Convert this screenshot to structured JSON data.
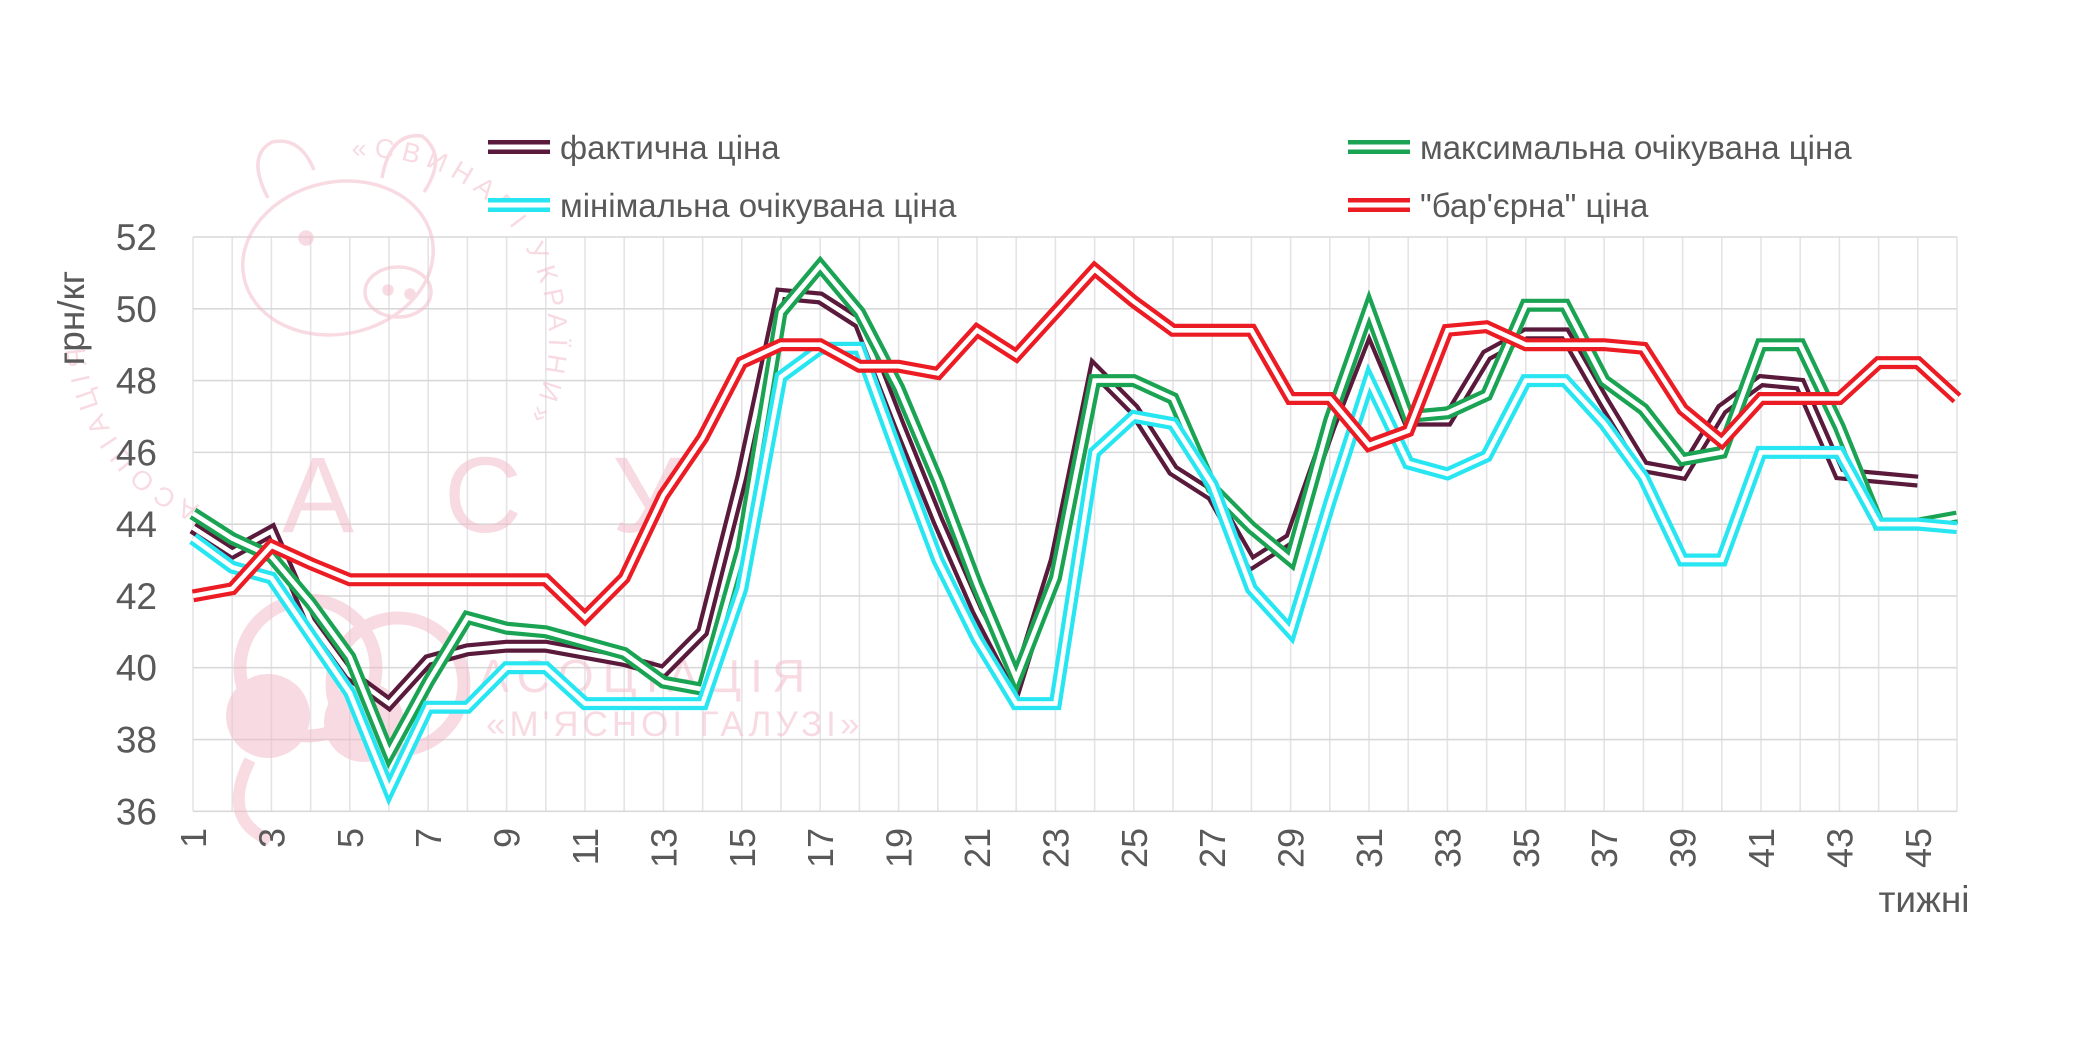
{
  "chart_data": {
    "type": "line",
    "xlabel": "тижні",
    "ylabel": "грн/кг",
    "ylim": [
      36,
      52
    ],
    "ytick_step": 2,
    "x_weeks": 46,
    "xticks": [
      1,
      3,
      5,
      7,
      9,
      11,
      13,
      15,
      17,
      19,
      21,
      23,
      25,
      27,
      29,
      31,
      33,
      35,
      37,
      39,
      41,
      43,
      45
    ],
    "grid": true,
    "legend_position": "top",
    "series": [
      {
        "name": "фактична ціна",
        "color": "#5a1a3c",
        "values": [
          43.9,
          43.2,
          43.8,
          41.3,
          39.8,
          39.0,
          40.2,
          40.5,
          40.6,
          40.6,
          40.4,
          40.2,
          39.9,
          41.0,
          45.3,
          50.4,
          50.3,
          49.6,
          46.8,
          44.1,
          41.6,
          39.5,
          43.0,
          48.3,
          47.2,
          45.5,
          44.8,
          42.9,
          43.6,
          46.7,
          49.5,
          46.9,
          46.9,
          48.7,
          49.3,
          49.3,
          47.4,
          45.6,
          45.4,
          47.2,
          48.0,
          47.9,
          45.4,
          45.3,
          45.2,
          null
        ]
      },
      {
        "name": "максимальна очікувана ціна",
        "color": "#1aa353",
        "values": [
          44.3,
          43.6,
          43.1,
          41.8,
          40.3,
          37.6,
          39.6,
          41.4,
          41.1,
          41.0,
          40.7,
          40.4,
          39.6,
          39.4,
          43.3,
          49.9,
          51.2,
          49.9,
          47.8,
          45.2,
          42.3,
          39.7,
          42.5,
          48.0,
          48.0,
          47.5,
          45.0,
          43.9,
          43.0,
          46.9,
          50.0,
          47.0,
          47.1,
          47.6,
          50.1,
          50.1,
          48.0,
          47.2,
          45.8,
          46.0,
          49.0,
          49.0,
          46.7,
          44.0,
          44.0,
          44.2
        ]
      },
      {
        "name": "мінімальна очікувана ціна",
        "color": "#27e6f2",
        "values": [
          43.6,
          42.8,
          42.5,
          40.9,
          39.3,
          36.6,
          38.9,
          38.9,
          40.0,
          40.0,
          39.0,
          39.0,
          39.0,
          39.0,
          42.2,
          48.1,
          48.9,
          48.9,
          45.9,
          43.0,
          40.8,
          39.0,
          39.0,
          46.0,
          47.0,
          46.8,
          45.1,
          42.2,
          41.0,
          44.6,
          48.0,
          45.7,
          45.4,
          45.9,
          48.0,
          48.0,
          46.8,
          45.3,
          43.0,
          43.0,
          46.0,
          46.0,
          46.0,
          44.0,
          44.0,
          43.9
        ]
      },
      {
        "name": "\"бар'єрна\" ціна",
        "color": "#ec1c24",
        "values": [
          42.0,
          42.2,
          43.4,
          42.9,
          42.45,
          42.45,
          42.45,
          42.45,
          42.45,
          42.45,
          41.4,
          42.5,
          44.8,
          46.4,
          48.5,
          49.0,
          49.0,
          48.4,
          48.4,
          48.2,
          49.4,
          48.7,
          49.9,
          51.1,
          50.2,
          49.4,
          49.4,
          49.4,
          47.5,
          47.5,
          46.2,
          46.6,
          49.4,
          49.5,
          49.0,
          49.0,
          49.0,
          48.9,
          47.2,
          46.3,
          47.5,
          47.5,
          47.5,
          48.5,
          48.5,
          47.5
        ]
      }
    ],
    "legend_grid": [
      [
        0,
        1
      ],
      [
        2,
        3
      ]
    ]
  },
  "watermark": {
    "arc_text_left": "АСОЦІАЦІЯ",
    "arc_text_right": "«СВИНАРІ УКРАЇНИ»",
    "big_text": "А С У",
    "line1": "АСОЦІАЦІЯ",
    "line2": "«М'ЯСНОЇ ГАЛУЗІ»",
    "color": "#f2b9c6"
  },
  "text_color": "#595959",
  "grid_color": "#d9d9d9",
  "grid_color_vertical": "#e4e4e8"
}
